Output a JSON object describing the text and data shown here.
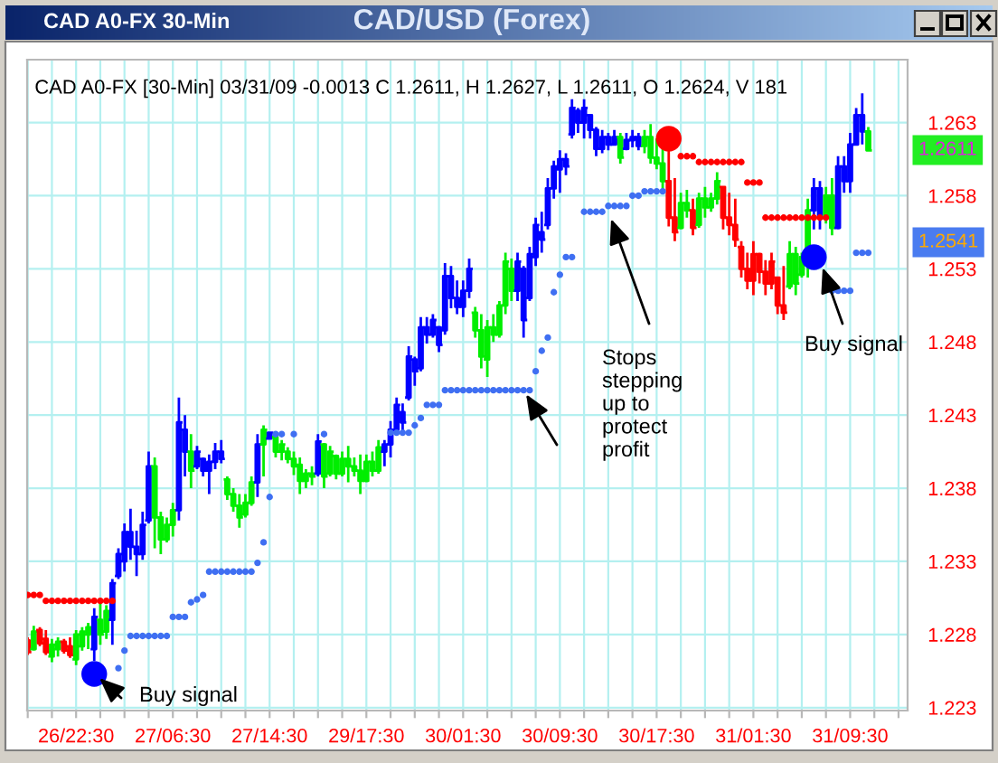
{
  "chart_data": {
    "type": "candlestick",
    "title": "CAD/USD (Forex)",
    "subtitle": "CAD A0-FX [30-Min] 03/31/09 -0.0013 C 1.2611, H 1.2627, L 1.2611, O 1.2624, V 181",
    "categories": [
      null,
      null,
      null,
      null,
      null,
      null,
      null,
      null,
      "26/22:30",
      null,
      null,
      null,
      null,
      null,
      null,
      null,
      null,
      null,
      null,
      null,
      null,
      null,
      null,
      null,
      "27/06:30",
      null,
      null,
      null,
      null,
      null,
      null,
      null,
      null,
      null,
      null,
      null,
      null,
      null,
      null,
      null,
      "27/14:30",
      null,
      null,
      null,
      null,
      null,
      null,
      null,
      null,
      null,
      null,
      null,
      null,
      null,
      null,
      null,
      "29/17:30",
      null,
      null,
      null,
      null,
      null,
      null,
      null,
      null,
      null,
      null,
      null,
      null,
      null,
      null,
      null,
      "30/01:30",
      null,
      null,
      null,
      null,
      null,
      null,
      null,
      null,
      null,
      null,
      null,
      null,
      null,
      null,
      null,
      "30/09:30",
      null,
      null,
      null,
      null,
      null,
      null,
      null,
      null,
      null,
      null,
      null,
      null,
      null,
      null,
      null,
      "30/17:30",
      null,
      null,
      null,
      null,
      null,
      null,
      null,
      null,
      null,
      null,
      null,
      null,
      null,
      null,
      null,
      "31/01:30",
      null,
      null,
      null,
      null,
      null,
      null,
      null,
      null,
      null,
      null,
      null,
      null,
      null,
      null,
      null,
      "31/09:30",
      null,
      null,
      null
    ],
    "ohlc": [
      [
        1.2276,
        1.2278,
        1.2266,
        1.2268
      ],
      [
        1.227,
        1.2286,
        1.2269,
        1.2282
      ],
      [
        1.2283,
        1.2285,
        1.2272,
        1.2274
      ],
      [
        1.2277,
        1.2283,
        1.2266,
        1.2268
      ],
      [
        1.2265,
        1.2277,
        1.2261,
        1.2273
      ],
      [
        1.227,
        1.2278,
        1.2265,
        1.2275
      ],
      [
        1.2275,
        1.2277,
        1.2267,
        1.2269
      ],
      [
        1.2272,
        1.2278,
        1.2264,
        1.2266
      ],
      [
        1.2263,
        1.2283,
        1.2259,
        1.228
      ],
      [
        1.2272,
        1.2285,
        1.2269,
        1.2282
      ],
      [
        1.228,
        1.2288,
        1.227,
        1.2285
      ],
      [
        1.227,
        1.2298,
        1.2262,
        1.2292
      ],
      [
        1.229,
        1.2302,
        1.2273,
        1.228
      ],
      [
        1.2282,
        1.23,
        1.2277,
        1.2296
      ],
      [
        1.229,
        1.2318,
        1.2273,
        1.2315
      ],
      [
        1.232,
        1.2339,
        1.2318,
        1.2335
      ],
      [
        1.233,
        1.2356,
        1.2323,
        1.235
      ],
      [
        1.235,
        1.2366,
        1.2331,
        1.234
      ],
      [
        1.234,
        1.2351,
        1.232,
        1.2335
      ],
      [
        1.2335,
        1.2364,
        1.2331,
        1.2355
      ],
      [
        1.2358,
        1.2405,
        1.2356,
        1.2395
      ],
      [
        1.2395,
        1.2401,
        1.2339,
        1.236
      ],
      [
        1.236,
        1.2364,
        1.2335,
        1.2345
      ],
      [
        1.2345,
        1.236,
        1.2343,
        1.2355
      ],
      [
        1.2355,
        1.237,
        1.2347,
        1.2365
      ],
      [
        1.2365,
        1.2442,
        1.2358,
        1.2425
      ],
      [
        1.242,
        1.243,
        1.2388,
        1.2405
      ],
      [
        1.2405,
        1.2417,
        1.238,
        1.2392
      ],
      [
        1.2395,
        1.2409,
        1.2393,
        1.2405
      ],
      [
        1.24,
        1.2401,
        1.2388,
        1.2392
      ],
      [
        1.2392,
        1.2403,
        1.2376,
        1.2398
      ],
      [
        1.2398,
        1.2411,
        1.2393,
        1.2405
      ],
      [
        1.2405,
        1.2413,
        1.2397,
        1.24
      ],
      [
        1.2386,
        1.2388,
        1.2372,
        1.2376
      ],
      [
        1.2376,
        1.238,
        1.2364,
        1.2368
      ],
      [
        1.2368,
        1.2376,
        1.2353,
        1.236
      ],
      [
        1.2362,
        1.2376,
        1.236,
        1.237
      ],
      [
        1.237,
        1.2388,
        1.2368,
        1.2384
      ],
      [
        1.2384,
        1.2417,
        1.2374,
        1.241
      ],
      [
        1.241,
        1.2423,
        1.2388,
        1.242
      ],
      [
        1.2414,
        1.2418,
        1.2414,
        1.2418
      ],
      [
        1.2415,
        1.2417,
        1.2401,
        1.2405
      ],
      [
        1.2405,
        1.2413,
        1.2399,
        1.241
      ],
      [
        1.2405,
        1.2408,
        1.2397,
        1.24
      ],
      [
        1.24,
        1.2405,
        1.2389,
        1.2395
      ],
      [
        1.2396,
        1.2401,
        1.2376,
        1.2385
      ],
      [
        1.2385,
        1.2393,
        1.238,
        1.239
      ],
      [
        1.239,
        1.2395,
        1.2382,
        1.2388
      ],
      [
        1.239,
        1.2417,
        1.2388,
        1.2412
      ],
      [
        1.241,
        1.2411,
        1.238,
        1.2388
      ],
      [
        1.239,
        1.2409,
        1.2388,
        1.2405
      ],
      [
        1.2402,
        1.2403,
        1.2386,
        1.239
      ],
      [
        1.239,
        1.2405,
        1.2388,
        1.24
      ],
      [
        1.24,
        1.2409,
        1.2384,
        1.2395
      ],
      [
        1.2395,
        1.2401,
        1.2388,
        1.2392
      ],
      [
        1.2392,
        1.2403,
        1.2376,
        1.2385
      ],
      [
        1.2385,
        1.2403,
        1.2384,
        1.2398
      ],
      [
        1.2398,
        1.2405,
        1.2388,
        1.2392
      ],
      [
        1.2392,
        1.2413,
        1.239,
        1.2408
      ],
      [
        1.2405,
        1.2413,
        1.2395,
        1.241
      ],
      [
        1.241,
        1.2426,
        1.2401,
        1.242
      ],
      [
        1.242,
        1.2442,
        1.2417,
        1.2437
      ],
      [
        1.2432,
        1.2438,
        1.2417,
        1.2425
      ],
      [
        1.2442,
        1.2477,
        1.244,
        1.247
      ],
      [
        1.2468,
        1.247,
        1.245,
        1.246
      ],
      [
        1.2462,
        1.2497,
        1.246,
        1.249
      ],
      [
        1.249,
        1.2497,
        1.2479,
        1.2485
      ],
      [
        1.2485,
        1.2499,
        1.2483,
        1.2495
      ],
      [
        1.249,
        1.2491,
        1.2473,
        1.2478
      ],
      [
        1.2488,
        1.2534,
        1.2485,
        1.2525
      ],
      [
        1.2525,
        1.2532,
        1.2503,
        1.251
      ],
      [
        1.251,
        1.2522,
        1.2499,
        1.2504
      ],
      [
        1.2504,
        1.2522,
        1.2497,
        1.2515
      ],
      [
        1.2515,
        1.2537,
        1.251,
        1.253
      ],
      [
        1.25,
        1.2504,
        1.2483,
        1.2488
      ],
      [
        1.2488,
        1.2499,
        1.2462,
        1.247
      ],
      [
        1.2468,
        1.2495,
        1.2456,
        1.249
      ],
      [
        1.249,
        1.2499,
        1.248,
        1.2485
      ],
      [
        1.2485,
        1.2508,
        1.2483,
        1.2505
      ],
      [
        1.2505,
        1.2541,
        1.2499,
        1.2535
      ],
      [
        1.253,
        1.2537,
        1.2508,
        1.2515
      ],
      [
        1.2515,
        1.2541,
        1.2508,
        1.2535
      ],
      [
        1.253,
        1.2532,
        1.2483,
        1.2495
      ],
      [
        1.251,
        1.2545,
        1.2508,
        1.254
      ],
      [
        1.2538,
        1.2565,
        1.2532,
        1.256
      ],
      [
        1.2555,
        1.2569,
        1.2541,
        1.255
      ],
      [
        1.256,
        1.2592,
        1.2557,
        1.2585
      ],
      [
        1.2585,
        1.2604,
        1.2578,
        1.26
      ],
      [
        1.2598,
        1.2611,
        1.2582,
        1.2605
      ],
      [
        1.2605,
        1.2609,
        1.2594,
        1.26
      ],
      [
        1.2622,
        1.2646,
        1.2619,
        1.264
      ],
      [
        1.2638,
        1.264,
        1.2623,
        1.263
      ],
      [
        1.263,
        1.2646,
        1.2619,
        1.264
      ],
      [
        1.2635,
        1.2635,
        1.2619,
        1.2625
      ],
      [
        1.2625,
        1.2627,
        1.2607,
        1.2612
      ],
      [
        1.2612,
        1.2625,
        1.2609,
        1.262
      ],
      [
        1.262,
        1.2623,
        1.2611,
        1.2615
      ],
      [
        1.2615,
        1.2625,
        1.2615,
        1.262
      ],
      [
        1.262,
        1.2623,
        1.2602,
        1.2606
      ],
      [
        1.2612,
        1.2623,
        1.2611,
        1.2618
      ],
      [
        1.2618,
        1.2625,
        1.2613,
        1.262
      ],
      [
        1.262,
        1.2623,
        1.2611,
        1.2614
      ],
      [
        1.2614,
        1.2625,
        1.2609,
        1.262
      ],
      [
        1.262,
        1.2629,
        1.2602,
        1.2606
      ],
      [
        1.2606,
        1.2619,
        1.2598,
        1.2602
      ],
      [
        1.2602,
        1.2615,
        1.2584,
        1.259
      ],
      [
        1.259,
        1.2611,
        1.2559,
        1.2565
      ],
      [
        1.2565,
        1.2592,
        1.2549,
        1.2555
      ],
      [
        1.2558,
        1.2582,
        1.2557,
        1.2575
      ],
      [
        1.2575,
        1.2584,
        1.2565,
        1.257
      ],
      [
        1.257,
        1.2578,
        1.2553,
        1.2558
      ],
      [
        1.256,
        1.2582,
        1.2558,
        1.2578
      ],
      [
        1.2578,
        1.2586,
        1.2565,
        1.2572
      ],
      [
        1.2572,
        1.2582,
        1.2569,
        1.2578
      ],
      [
        1.2578,
        1.2596,
        1.2574,
        1.259
      ],
      [
        1.2586,
        1.2586,
        1.2557,
        1.2565
      ],
      [
        1.2565,
        1.2582,
        1.2553,
        1.256
      ],
      [
        1.256,
        1.2578,
        1.2545,
        1.255
      ],
      [
        1.2545,
        1.2549,
        1.2524,
        1.253
      ],
      [
        1.253,
        1.2541,
        1.2516,
        1.2522
      ],
      [
        1.2522,
        1.2549,
        1.2512,
        1.254
      ],
      [
        1.254,
        1.2541,
        1.252,
        1.2528
      ],
      [
        1.2528,
        1.2536,
        1.2512,
        1.252
      ],
      [
        1.252,
        1.2541,
        1.2516,
        1.2535
      ],
      [
        1.2524,
        1.2524,
        1.2499,
        1.2505
      ],
      [
        1.2505,
        1.2532,
        1.2495,
        1.25
      ],
      [
        1.2518,
        1.2549,
        1.2516,
        1.254
      ],
      [
        1.254,
        1.2545,
        1.2512,
        1.252
      ],
      [
        1.2526,
        1.2541,
        1.2524,
        1.2538
      ],
      [
        1.2538,
        1.2578,
        1.2524,
        1.257
      ],
      [
        1.257,
        1.2592,
        1.2557,
        1.2585
      ],
      [
        1.2585,
        1.259,
        1.2557,
        1.2565
      ],
      [
        1.2565,
        1.2586,
        1.2561,
        1.258
      ],
      [
        1.258,
        1.2592,
        1.2553,
        1.2558
      ],
      [
        1.2558,
        1.2607,
        1.2557,
        1.26
      ],
      [
        1.26,
        1.2607,
        1.2582,
        1.259
      ],
      [
        1.259,
        1.2623,
        1.2582,
        1.2615
      ],
      [
        1.2615,
        1.264,
        1.2615,
        1.2635
      ],
      [
        1.2635,
        1.265,
        1.2615,
        1.2624
      ],
      [
        1.2624,
        1.2627,
        1.2611,
        1.2611
      ]
    ],
    "colors": [
      "#ff0000",
      "#00ee00",
      "#ff0000",
      "#ff0000",
      "#00ee00",
      "#00ee00",
      "#ff0000",
      "#ff0000",
      "#00ee00",
      "#00ee00",
      "#00ee00",
      "#0000ff",
      "#00ee00",
      "#00ee00",
      "#0000ff",
      "#0000ff",
      "#0000ff",
      "#0000ff",
      "#0000ff",
      "#0000ff",
      "#0000ff",
      "#00ee00",
      "#00ee00",
      "#00ee00",
      "#00ee00",
      "#0000ff",
      "#0000ff",
      "#00ee00",
      "#0000ff",
      "#0000ff",
      "#0000ff",
      "#0000ff",
      "#0000ff",
      "#00ee00",
      "#00ee00",
      "#00ee00",
      "#00ee00",
      "#00ee00",
      "#0000ff",
      "#00ee00",
      "#0000ff",
      "#00ee00",
      "#00ee00",
      "#00ee00",
      "#00ee00",
      "#00ee00",
      "#00ee00",
      "#00ee00",
      "#0000ff",
      "#00ee00",
      "#00ee00",
      "#00ee00",
      "#00ee00",
      "#00ee00",
      "#00ee00",
      "#00ee00",
      "#00ee00",
      "#00ee00",
      "#00ee00",
      "#0000ff",
      "#0000ff",
      "#0000ff",
      "#0000ff",
      "#0000ff",
      "#0000ff",
      "#0000ff",
      "#0000ff",
      "#0000ff",
      "#0000ff",
      "#0000ff",
      "#0000ff",
      "#0000ff",
      "#0000ff",
      "#0000ff",
      "#00ee00",
      "#00ee00",
      "#00ee00",
      "#00ee00",
      "#00ee00",
      "#00ee00",
      "#00ee00",
      "#0000ff",
      "#0000ff",
      "#0000ff",
      "#0000ff",
      "#0000ff",
      "#0000ff",
      "#0000ff",
      "#0000ff",
      "#0000ff",
      "#0000ff",
      "#0000ff",
      "#0000ff",
      "#0000ff",
      "#0000ff",
      "#0000ff",
      "#0000ff",
      "#0000ff",
      "#00ee00",
      "#0000ff",
      "#0000ff",
      "#0000ff",
      "#00ee00",
      "#00ee00",
      "#00ee00",
      "#00ee00",
      "#ff0000",
      "#ff0000",
      "#00ee00",
      "#00ee00",
      "#ff0000",
      "#00ee00",
      "#00ee00",
      "#00ee00",
      "#00ee00",
      "#ff0000",
      "#ff0000",
      "#ff0000",
      "#ff0000",
      "#ff0000",
      "#ff0000",
      "#ff0000",
      "#ff0000",
      "#ff0000",
      "#ff0000",
      "#ff0000",
      "#00ee00",
      "#00ee00",
      "#00ee00",
      "#00ee00",
      "#0000ff",
      "#0000ff",
      "#00ee00",
      "#00ee00",
      "#0000ff",
      "#0000ff",
      "#0000ff",
      "#0000ff",
      "#0000ff",
      "#00ee00"
    ],
    "series": [
      {
        "type": "scatter",
        "marker": "circle",
        "color": "#3f6ff2",
        "values": [
          null,
          null,
          null,
          null,
          null,
          null,
          null,
          null,
          null,
          null,
          null,
          null,
          null,
          null,
          null,
          1.2257,
          1.2269,
          1.2279,
          1.2279,
          1.2279,
          1.2279,
          1.2279,
          1.2279,
          1.2279,
          1.2292,
          1.2292,
          1.2292,
          1.2302,
          1.2304,
          1.2307,
          1.2323,
          1.2323,
          1.2323,
          1.2323,
          1.2323,
          1.2323,
          1.2323,
          1.2323,
          1.2329,
          1.2343,
          1.2374,
          1.2417,
          1.2417,
          null,
          1.2417,
          null,
          null,
          null,
          null,
          1.2417,
          null,
          null,
          null,
          null,
          null,
          null,
          null,
          null,
          null,
          null,
          1.2418,
          1.2418,
          1.2418,
          1.2418,
          1.2423,
          1.2428,
          1.2437,
          1.2437,
          1.2437,
          1.2447,
          1.2447,
          1.2447,
          1.2447,
          1.2447,
          1.2447,
          1.2447,
          1.2447,
          1.2447,
          1.2447,
          1.2447,
          1.2447,
          1.2447,
          1.2447,
          1.2447,
          1.246,
          1.2474,
          1.2483,
          1.2514,
          1.2526,
          1.2538,
          1.2538,
          null,
          1.2569,
          1.2569,
          1.2569,
          1.2569,
          1.2573,
          1.2573,
          1.2573,
          1.2573,
          1.258,
          1.258,
          1.2583,
          1.2583,
          1.2583,
          1.2583,
          null,
          null,
          null,
          null,
          null,
          null,
          null,
          null,
          null,
          null,
          null,
          null,
          null,
          null,
          null,
          null,
          null,
          null,
          null,
          null,
          null,
          null,
          null,
          null,
          null,
          null,
          null,
          1.2515,
          1.2515,
          1.2515,
          1.2515,
          1.2541,
          1.2541,
          1.2541
        ]
      },
      {
        "type": "scatter",
        "marker": "circle",
        "color": "#ff0000",
        "values": [
          1.2307,
          1.2307,
          1.2307,
          1.2303,
          1.2303,
          1.2303,
          1.2303,
          1.2303,
          1.2303,
          1.2303,
          1.2303,
          1.2303,
          1.2303,
          1.2303,
          1.2303,
          null,
          null,
          null,
          null,
          null,
          null,
          null,
          null,
          null,
          null,
          null,
          null,
          null,
          null,
          null,
          null,
          null,
          null,
          null,
          null,
          null,
          null,
          null,
          null,
          null,
          null,
          null,
          null,
          null,
          null,
          null,
          null,
          null,
          null,
          null,
          null,
          null,
          null,
          null,
          null,
          null,
          null,
          null,
          null,
          null,
          null,
          null,
          null,
          null,
          null,
          null,
          null,
          null,
          null,
          null,
          null,
          null,
          null,
          null,
          null,
          null,
          null,
          null,
          null,
          null,
          null,
          null,
          null,
          null,
          null,
          null,
          null,
          null,
          null,
          null,
          null,
          null,
          null,
          null,
          null,
          null,
          null,
          null,
          null,
          null,
          null,
          null,
          null,
          null,
          null,
          null,
          null,
          null,
          1.2607,
          1.2607,
          1.2607,
          1.2603,
          1.2603,
          1.2603,
          1.2603,
          1.2603,
          1.2603,
          1.2603,
          1.2603,
          1.2589,
          1.2589,
          1.2589,
          1.2565,
          1.2565,
          1.2565,
          1.2565,
          1.2565,
          1.2565,
          1.2565,
          1.2565,
          1.2565,
          1.2565,
          1.2565,
          null,
          null,
          null,
          null,
          null,
          null,
          null
        ]
      },
      {
        "type": "scatter",
        "marker": "circle",
        "color": "#0000ff",
        "values": [
          null,
          null,
          null,
          null,
          null,
          null,
          null,
          null,
          null,
          null,
          null,
          1.2253,
          null,
          null,
          null,
          null,
          null,
          null,
          null,
          null,
          null,
          null,
          null,
          null,
          null,
          null,
          null,
          null,
          null,
          null,
          null,
          null,
          null,
          null,
          null,
          null,
          null,
          null,
          null,
          null,
          null,
          null,
          null,
          null,
          null,
          null,
          null,
          null,
          null,
          null,
          null,
          null,
          null,
          null,
          null,
          null,
          null,
          null,
          null,
          null,
          null,
          null,
          null,
          null,
          null,
          null,
          null,
          null,
          null,
          null,
          null,
          null,
          null,
          null,
          null,
          null,
          null,
          null,
          null,
          null,
          null,
          null,
          null,
          null,
          null,
          null,
          null,
          null,
          null,
          null,
          null,
          null,
          null,
          null,
          null,
          null,
          null,
          null,
          null,
          null,
          null,
          null,
          null,
          null,
          null,
          null,
          null,
          null,
          null,
          null,
          null,
          null,
          null,
          null,
          null,
          null,
          null,
          null,
          null,
          null,
          null,
          null,
          null,
          null,
          null,
          null,
          null,
          null,
          null,
          null,
          1.2538,
          null,
          null,
          null,
          null,
          null,
          null,
          null,
          null,
          null
        ]
      },
      {
        "type": "scatter",
        "marker": "circle",
        "color": "#ff0000",
        "values": [
          null,
          null,
          null,
          null,
          null,
          null,
          null,
          null,
          null,
          null,
          null,
          null,
          null,
          null,
          null,
          null,
          null,
          null,
          null,
          null,
          null,
          null,
          null,
          null,
          null,
          null,
          null,
          null,
          null,
          null,
          null,
          null,
          null,
          null,
          null,
          null,
          null,
          null,
          null,
          null,
          null,
          null,
          null,
          null,
          null,
          null,
          null,
          null,
          null,
          null,
          null,
          null,
          null,
          null,
          null,
          null,
          null,
          null,
          null,
          null,
          null,
          null,
          null,
          null,
          null,
          null,
          null,
          null,
          null,
          null,
          null,
          null,
          null,
          null,
          null,
          null,
          null,
          null,
          null,
          null,
          null,
          null,
          null,
          null,
          null,
          null,
          null,
          null,
          null,
          null,
          null,
          null,
          null,
          null,
          null,
          null,
          null,
          null,
          null,
          null,
          null,
          null,
          null,
          null,
          null,
          null,
          1.2619,
          null,
          null,
          null,
          null,
          null,
          null,
          null,
          null,
          null,
          null,
          null,
          null,
          null,
          null,
          null,
          null,
          null,
          null,
          null,
          null,
          null,
          null,
          null,
          null,
          null,
          null,
          null,
          null,
          null,
          null,
          null,
          null,
          null
        ]
      }
    ],
    "ylim": [
      1.2228,
      1.2673
    ],
    "yticks": [
      1.223,
      1.228,
      1.233,
      1.238,
      1.243,
      1.248,
      1.253,
      1.258,
      1.263
    ],
    "grid": true,
    "annotations": [
      "CAD A0-FX 30-Min",
      "Buy signal",
      "Stops\nstepping\nup to\nprotect\nprofit",
      "Buy signal",
      "1.2611",
      "1.2541"
    ]
  }
}
